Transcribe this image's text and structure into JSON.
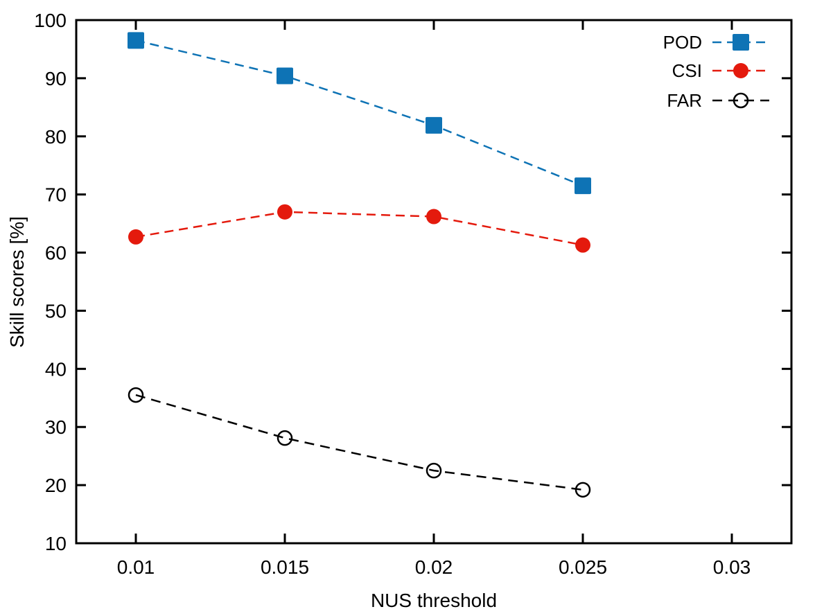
{
  "chart_data": {
    "type": "line",
    "title": "",
    "xlabel": "NUS threshold",
    "ylabel": "Skill scores [%]",
    "xlim": [
      0.008,
      0.032
    ],
    "ylim": [
      10,
      100
    ],
    "grid": false,
    "legend_position": "top-right-inside",
    "background_color": "#ffffff",
    "axis_color": "#000000",
    "xticks": [
      {
        "v": 0.01,
        "label": "0.01"
      },
      {
        "v": 0.015,
        "label": "0.015"
      },
      {
        "v": 0.02,
        "label": "0.02"
      },
      {
        "v": 0.025,
        "label": "0.025"
      },
      {
        "v": 0.03,
        "label": "0.03"
      }
    ],
    "yticks": [
      {
        "v": 10,
        "label": "10"
      },
      {
        "v": 20,
        "label": "20"
      },
      {
        "v": 30,
        "label": "30"
      },
      {
        "v": 40,
        "label": "40"
      },
      {
        "v": 50,
        "label": "50"
      },
      {
        "v": 60,
        "label": "60"
      },
      {
        "v": 70,
        "label": "70"
      },
      {
        "v": 80,
        "label": "80"
      },
      {
        "v": 90,
        "label": "90"
      },
      {
        "v": 100,
        "label": "100"
      }
    ],
    "x": [
      0.01,
      0.015,
      0.02,
      0.025
    ],
    "series": [
      {
        "name": "POD",
        "color": "#0e73b5",
        "marker": "filled-square",
        "line_style": "dashed",
        "values": [
          96.5,
          90.4,
          81.9,
          71.5
        ]
      },
      {
        "name": "CSI",
        "color": "#e41a0d",
        "marker": "filled-circle",
        "line_style": "dashed",
        "values": [
          62.7,
          67.0,
          66.2,
          61.3
        ]
      },
      {
        "name": "FAR",
        "color": "#000000",
        "marker": "open-circle",
        "line_style": "dashed",
        "values": [
          35.5,
          28.1,
          22.5,
          19.2
        ]
      }
    ]
  }
}
